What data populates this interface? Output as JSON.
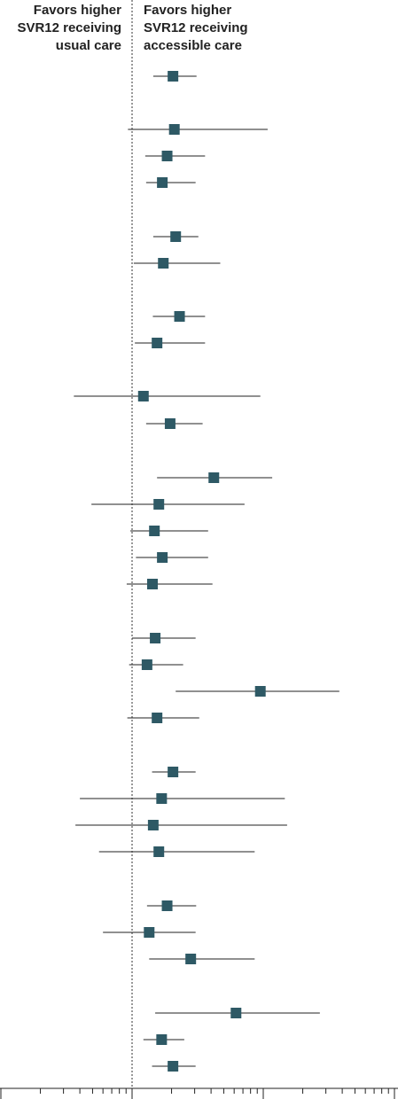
{
  "header": {
    "left_lines": [
      "Favors higher",
      "SVR12 receiving",
      "usual care"
    ],
    "right_lines": [
      "Favors higher",
      "SVR12 receiving",
      "accessible care"
    ]
  },
  "colors": {
    "marker": "#2e5965",
    "line": "#222222",
    "reference": "#333333"
  },
  "chart_data": {
    "type": "forest",
    "scale": "log",
    "reference_value": 1,
    "xlim": [
      0.1,
      20
    ],
    "legend": "none",
    "grid": false,
    "rows": [
      {
        "estimate": 2.05,
        "lower": 1.45,
        "upper": 3.1
      },
      {
        "estimate": 2.1,
        "lower": 0.93,
        "upper": 10.8
      },
      {
        "estimate": 1.85,
        "lower": 1.26,
        "upper": 3.6
      },
      {
        "estimate": 1.7,
        "lower": 1.28,
        "upper": 3.05
      },
      {
        "estimate": 2.15,
        "lower": 1.45,
        "upper": 3.2
      },
      {
        "estimate": 1.73,
        "lower": 1.03,
        "upper": 4.7
      },
      {
        "estimate": 2.3,
        "lower": 1.44,
        "upper": 3.6
      },
      {
        "estimate": 1.55,
        "lower": 1.05,
        "upper": 3.6
      },
      {
        "estimate": 1.22,
        "lower": 0.36,
        "upper": 9.5
      },
      {
        "estimate": 1.95,
        "lower": 1.28,
        "upper": 3.45
      },
      {
        "estimate": 4.2,
        "lower": 1.55,
        "upper": 11.7
      },
      {
        "estimate": 1.6,
        "lower": 0.49,
        "upper": 7.2
      },
      {
        "estimate": 1.48,
        "lower": 0.97,
        "upper": 3.8
      },
      {
        "estimate": 1.7,
        "lower": 1.07,
        "upper": 3.8
      },
      {
        "estimate": 1.43,
        "lower": 0.91,
        "upper": 4.1
      },
      {
        "estimate": 1.5,
        "lower": 1.0,
        "upper": 3.05
      },
      {
        "estimate": 1.3,
        "lower": 0.95,
        "upper": 2.45
      },
      {
        "estimate": 9.5,
        "lower": 2.15,
        "upper": 38
      },
      {
        "estimate": 1.55,
        "lower": 0.92,
        "upper": 3.25
      },
      {
        "estimate": 2.05,
        "lower": 1.42,
        "upper": 3.05
      },
      {
        "estimate": 1.68,
        "lower": 0.4,
        "upper": 14.6
      },
      {
        "estimate": 1.45,
        "lower": 0.37,
        "upper": 15.2
      },
      {
        "estimate": 1.6,
        "lower": 0.56,
        "upper": 8.6
      },
      {
        "estimate": 1.85,
        "lower": 1.3,
        "upper": 3.08
      },
      {
        "estimate": 1.35,
        "lower": 0.6,
        "upper": 3.05
      },
      {
        "estimate": 2.8,
        "lower": 1.35,
        "upper": 8.6
      },
      {
        "estimate": 6.2,
        "lower": 1.5,
        "upper": 27
      },
      {
        "estimate": 1.68,
        "lower": 1.22,
        "upper": 2.5
      },
      {
        "estimate": 2.05,
        "lower": 1.42,
        "upper": 3.05
      }
    ]
  }
}
